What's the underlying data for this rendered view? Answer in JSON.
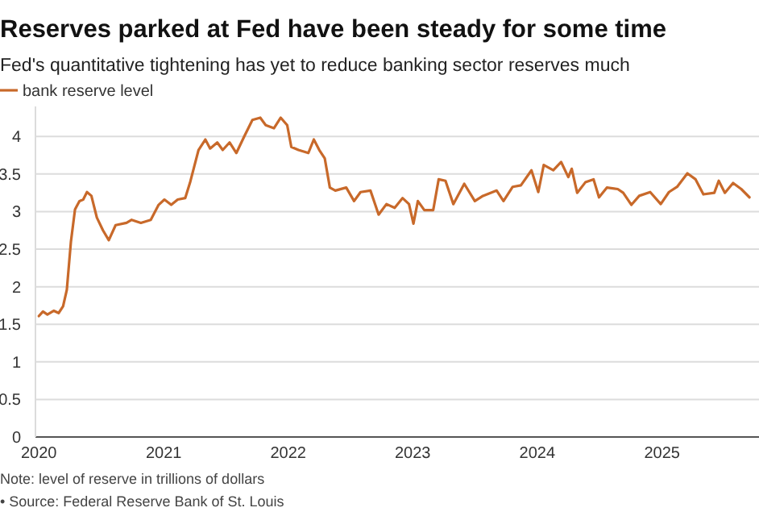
{
  "chart_data": {
    "type": "line",
    "title": "Reserves parked at Fed have been steady for some time",
    "subtitle": "Fed's quantitative tightening has yet to reduce banking sector reserves much",
    "annotations": [
      "Note: level of reserve in trillions of dollars",
      "• Source: Federal Reserve Bank of St. Louis"
    ],
    "x": [
      "2020-01-01",
      "2020-01-13",
      "2020-01-26",
      "2020-02-14",
      "2020-02-28",
      "2020-03-12",
      "2020-03-23",
      "2020-04-04",
      "2020-04-16",
      "2020-04-29",
      "2020-05-10",
      "2020-05-21",
      "2020-06-03",
      "2020-06-19",
      "2020-07-07",
      "2020-07-24",
      "2020-08-13",
      "2020-09-14",
      "2020-09-29",
      "2020-10-26",
      "2020-11-24",
      "2020-12-17",
      "2021-01-03",
      "2021-01-23",
      "2021-02-11",
      "2021-03-05",
      "2021-03-20",
      "2021-04-13",
      "2021-05-03",
      "2021-05-17",
      "2021-06-07",
      "2021-06-23",
      "2021-07-13",
      "2021-08-02",
      "2021-08-25",
      "2021-09-18",
      "2021-10-11",
      "2021-10-27",
      "2021-11-20",
      "2021-12-10",
      "2021-12-29",
      "2022-01-10",
      "2022-01-31",
      "2022-03-01",
      "2022-03-17",
      "2022-04-02",
      "2022-04-18",
      "2022-05-03",
      "2022-05-19",
      "2022-06-20",
      "2022-07-13",
      "2022-08-01",
      "2022-08-30",
      "2022-09-23",
      "2022-10-16",
      "2022-11-09",
      "2022-12-02",
      "2022-12-21",
      "2023-01-03",
      "2023-01-16",
      "2023-02-04",
      "2023-03-02",
      "2023-03-18",
      "2023-04-07",
      "2023-04-30",
      "2023-06-01",
      "2023-07-02",
      "2023-07-26",
      "2023-09-04",
      "2023-09-24",
      "2023-10-21",
      "2023-11-14",
      "2023-12-15",
      "2024-01-04",
      "2024-01-20",
      "2024-02-17",
      "2024-03-11",
      "2024-04-01",
      "2024-04-11",
      "2024-04-27",
      "2024-05-21",
      "2024-06-14",
      "2024-06-30",
      "2024-07-23",
      "2024-08-24",
      "2024-09-09",
      "2024-10-03",
      "2024-10-26",
      "2024-11-27",
      "2024-12-28",
      "2025-01-21",
      "2025-02-14",
      "2025-03-16",
      "2025-04-09",
      "2025-05-02",
      "2025-06-03",
      "2025-06-16",
      "2025-07-04",
      "2025-07-28",
      "2025-08-21",
      "2025-09-14"
    ],
    "series": [
      {
        "name": "bank reserve level",
        "color": "#c8692a",
        "values": [
          1.61,
          1.67,
          1.63,
          1.68,
          1.65,
          1.74,
          1.96,
          2.6,
          3.03,
          3.14,
          3.16,
          3.26,
          3.21,
          2.92,
          2.75,
          2.62,
          2.82,
          2.85,
          2.89,
          2.85,
          2.89,
          3.09,
          3.16,
          3.09,
          3.16,
          3.18,
          3.4,
          3.82,
          3.96,
          3.84,
          3.92,
          3.82,
          3.92,
          3.78,
          4.0,
          4.22,
          4.25,
          4.15,
          4.11,
          4.25,
          4.15,
          3.86,
          3.82,
          3.78,
          3.96,
          3.82,
          3.71,
          3.32,
          3.28,
          3.32,
          3.14,
          3.26,
          3.28,
          2.96,
          3.1,
          3.05,
          3.18,
          3.1,
          2.84,
          3.14,
          3.02,
          3.02,
          3.43,
          3.41,
          3.1,
          3.37,
          3.14,
          3.21,
          3.28,
          3.14,
          3.33,
          3.35,
          3.55,
          3.26,
          3.62,
          3.55,
          3.66,
          3.46,
          3.57,
          3.25,
          3.39,
          3.43,
          3.19,
          3.32,
          3.3,
          3.25,
          3.09,
          3.21,
          3.26,
          3.1,
          3.26,
          3.33,
          3.51,
          3.43,
          3.23,
          3.25,
          3.41,
          3.25,
          3.38,
          3.3,
          3.19
        ]
      }
    ],
    "xlim": [
      "2019-12-22",
      "2025-10-12"
    ],
    "xticks": [
      "2020",
      "2021",
      "2022",
      "2023",
      "2024",
      "2025"
    ],
    "ylim": [
      0,
      4.4
    ],
    "yticks": [
      0,
      0.5,
      1,
      1.5,
      2,
      2.5,
      3,
      3.5,
      4
    ],
    "grid": "y",
    "legend": "top left",
    "marker": "none",
    "line_style": "solid"
  }
}
